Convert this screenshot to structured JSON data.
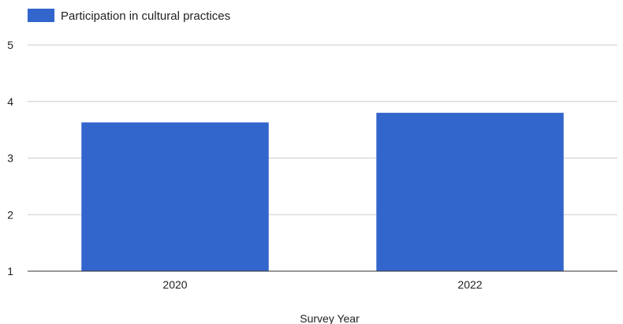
{
  "chart_data": {
    "type": "bar",
    "categories": [
      "2020",
      "2022"
    ],
    "series": [
      {
        "name": "Participation in cultural practices",
        "values": [
          3.63,
          3.8
        ],
        "color": "#3366cc"
      }
    ],
    "title": "",
    "xlabel": "Survey Year",
    "ylabel": "",
    "ylim": [
      1,
      5
    ],
    "yticks": [
      "1",
      "2",
      "3",
      "4",
      "5"
    ],
    "grid": true,
    "legend_position": "top-left"
  }
}
